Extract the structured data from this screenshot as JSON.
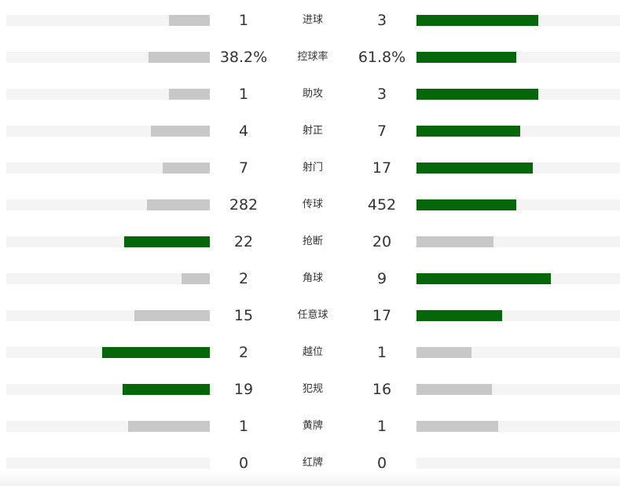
{
  "colors": {
    "win": "#05660a",
    "lose": "#c8c8c8",
    "track": "#f4f4f4"
  },
  "chart_data": {
    "type": "bar",
    "rows": [
      {
        "label": "进球",
        "left": "1",
        "right": "3",
        "left_share": 0.2,
        "right_share": 0.6,
        "leader": "right"
      },
      {
        "label": "控球率",
        "left": "38.2%",
        "right": "61.8%",
        "left_share": 0.3,
        "right_share": 0.49,
        "leader": "right"
      },
      {
        "label": "助攻",
        "left": "1",
        "right": "3",
        "left_share": 0.2,
        "right_share": 0.6,
        "leader": "right"
      },
      {
        "label": "射正",
        "left": "4",
        "right": "7",
        "left_share": 0.29,
        "right_share": 0.51,
        "leader": "right"
      },
      {
        "label": "射门",
        "left": "7",
        "right": "17",
        "left_share": 0.23,
        "right_share": 0.57,
        "leader": "right"
      },
      {
        "label": "传球",
        "left": "282",
        "right": "452",
        "left_share": 0.31,
        "right_share": 0.49,
        "leader": "right"
      },
      {
        "label": "抢断",
        "left": "22",
        "right": "20",
        "left_share": 0.42,
        "right_share": 0.38,
        "leader": "left"
      },
      {
        "label": "角球",
        "left": "2",
        "right": "9",
        "left_share": 0.14,
        "right_share": 0.66,
        "leader": "right"
      },
      {
        "label": "任意球",
        "left": "15",
        "right": "17",
        "left_share": 0.37,
        "right_share": 0.42,
        "leader": "right"
      },
      {
        "label": "越位",
        "left": "2",
        "right": "1",
        "left_share": 0.53,
        "right_share": 0.27,
        "leader": "left"
      },
      {
        "label": "犯规",
        "left": "19",
        "right": "16",
        "left_share": 0.43,
        "right_share": 0.37,
        "leader": "left"
      },
      {
        "label": "黄牌",
        "left": "1",
        "right": "1",
        "left_share": 0.4,
        "right_share": 0.4,
        "leader": "none"
      },
      {
        "label": "红牌",
        "left": "0",
        "right": "0",
        "left_share": 0,
        "right_share": 0,
        "leader": "none"
      }
    ]
  }
}
